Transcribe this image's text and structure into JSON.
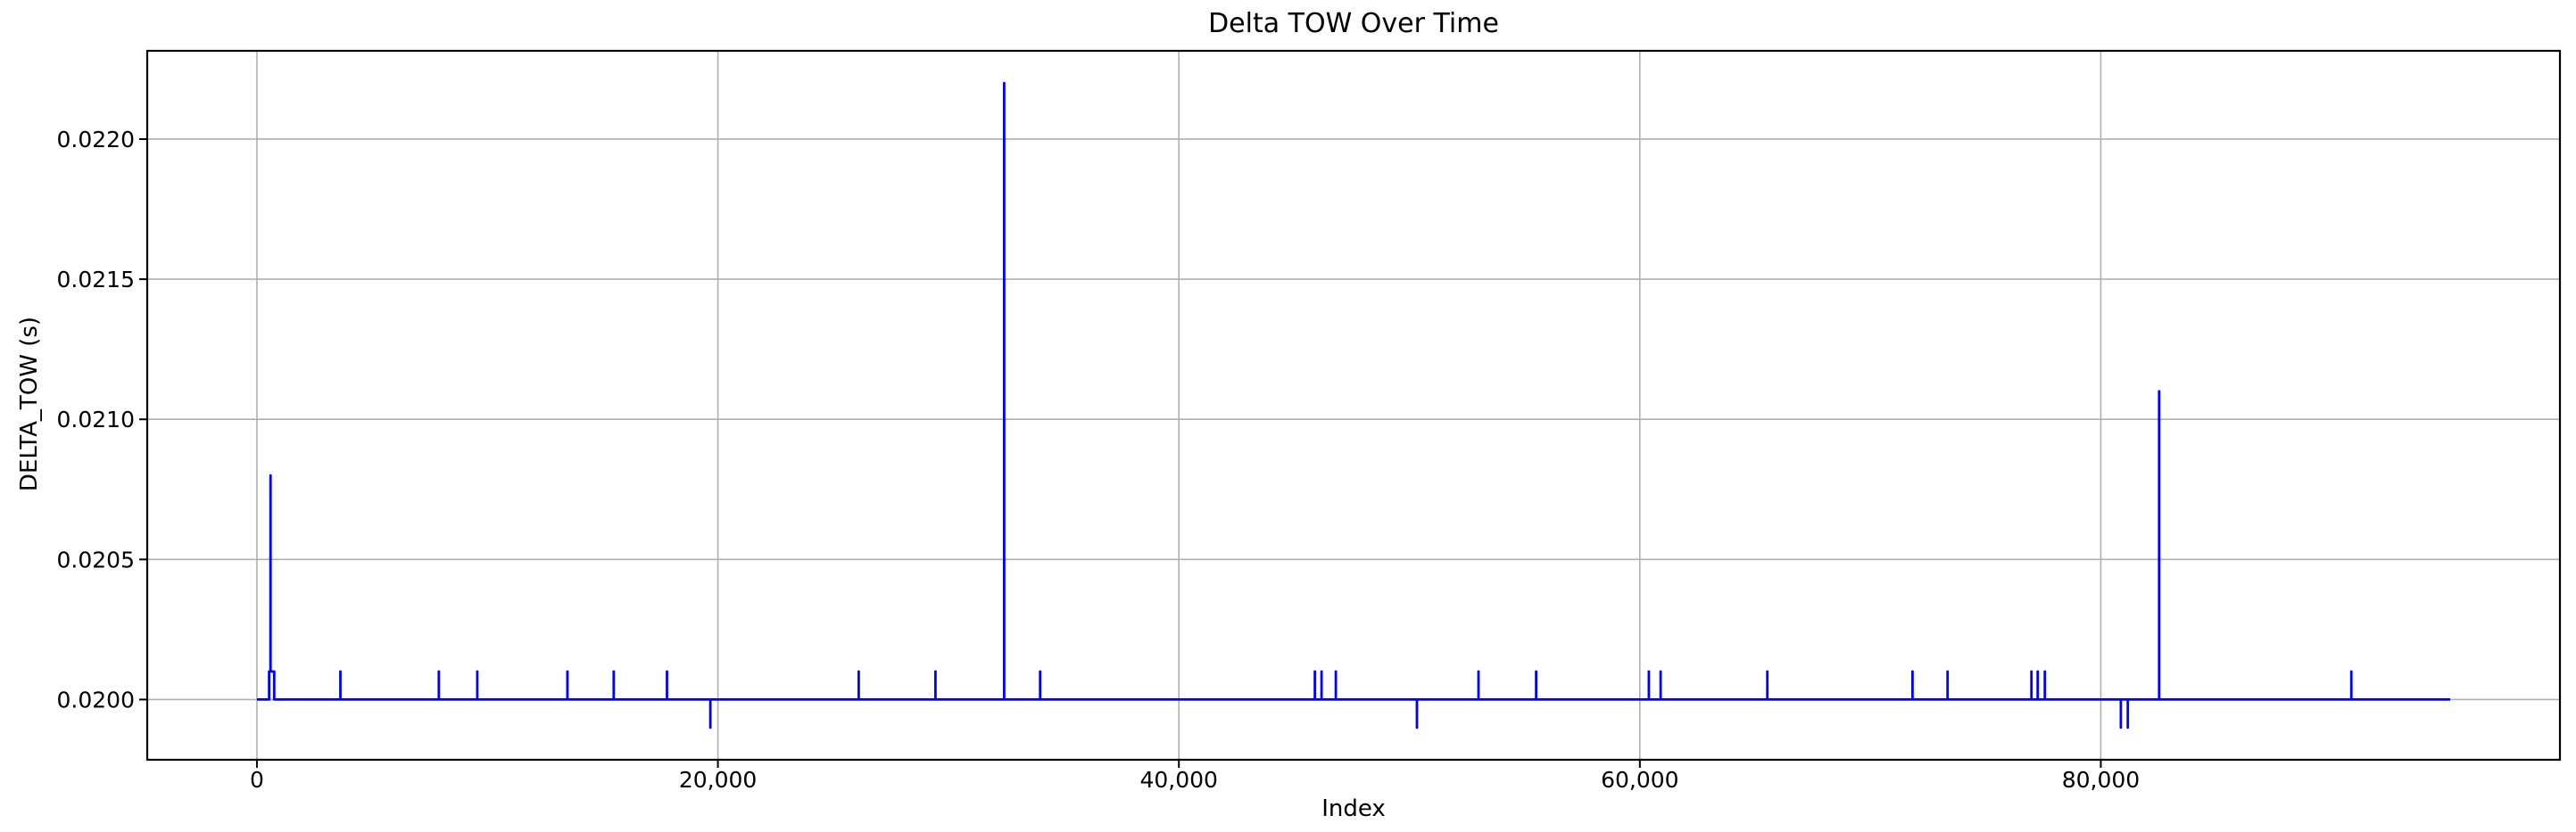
{
  "chart_data": {
    "type": "line",
    "title": "Delta TOW Over Time",
    "xlabel": "Index",
    "ylabel": "DELTA_TOW (s)",
    "grid": true,
    "grid_color": "#b0b0b0",
    "axis_color": "#000000",
    "xlim": [
      -4760,
      99920
    ],
    "ylim": [
      0.019785,
      0.022315
    ],
    "x_ticks": [
      {
        "value": 0,
        "label": "0"
      },
      {
        "value": 20000,
        "label": "20,000"
      },
      {
        "value": 40000,
        "label": "40,000"
      },
      {
        "value": 60000,
        "label": "60,000"
      },
      {
        "value": 80000,
        "label": "80,000"
      }
    ],
    "y_ticks": [
      {
        "value": 0.02,
        "label": "0.0200"
      },
      {
        "value": 0.0205,
        "label": "0.0205"
      },
      {
        "value": 0.021,
        "label": "0.0210"
      },
      {
        "value": 0.0215,
        "label": "0.0215"
      },
      {
        "value": 0.022,
        "label": "0.0220"
      }
    ],
    "baseline_value": 0.02,
    "index_range": [
      0,
      95160
    ],
    "annotations_summary": {
      "major_spikes": [
        {
          "index": 590,
          "value": 0.0208
        },
        {
          "index": 32420,
          "value": 0.0222
        },
        {
          "index": 82530,
          "value": 0.0211
        }
      ],
      "minor_spike_value": 0.0201,
      "minor_spike_indices": [
        3620,
        7890,
        9560,
        13470,
        15480,
        17790,
        26110,
        29440,
        33980,
        45900,
        46190,
        46810,
        53000,
        55500,
        60390,
        60900,
        65530,
        71830,
        73350,
        76990,
        77260,
        77570,
        90870
      ],
      "plateau": {
        "from": 530,
        "to": 750,
        "value": 0.0201
      },
      "dip_value": 0.0199,
      "dip_indices": [
        19670,
        50330,
        80870,
        81170
      ]
    },
    "series": [
      {
        "name": "DELTA_TOW",
        "color": "#0000ff",
        "points": [
          [
            0,
            0.02
          ],
          [
            530,
            0.02
          ],
          [
            530,
            0.0201
          ],
          [
            588,
            0.0201
          ],
          [
            590,
            0.0208
          ],
          [
            592,
            0.0201
          ],
          [
            750,
            0.0201
          ],
          [
            750,
            0.02
          ],
          [
            3620,
            0.02
          ],
          [
            3620,
            0.0201
          ],
          [
            3620,
            0.02
          ],
          [
            7890,
            0.02
          ],
          [
            7890,
            0.0201
          ],
          [
            7890,
            0.02
          ],
          [
            9560,
            0.02
          ],
          [
            9560,
            0.0201
          ],
          [
            9560,
            0.02
          ],
          [
            13470,
            0.02
          ],
          [
            13470,
            0.0201
          ],
          [
            13470,
            0.02
          ],
          [
            15480,
            0.02
          ],
          [
            15480,
            0.0201
          ],
          [
            15480,
            0.02
          ],
          [
            17790,
            0.02
          ],
          [
            17790,
            0.0201
          ],
          [
            17790,
            0.02
          ],
          [
            19670,
            0.02
          ],
          [
            19670,
            0.0199
          ],
          [
            19670,
            0.02
          ],
          [
            26110,
            0.02
          ],
          [
            26110,
            0.0201
          ],
          [
            26110,
            0.02
          ],
          [
            29440,
            0.02
          ],
          [
            29440,
            0.0201
          ],
          [
            29440,
            0.02
          ],
          [
            32420,
            0.02
          ],
          [
            32420,
            0.0222
          ],
          [
            32420,
            0.02
          ],
          [
            33980,
            0.02
          ],
          [
            33980,
            0.0201
          ],
          [
            33980,
            0.02
          ],
          [
            45900,
            0.02
          ],
          [
            45900,
            0.0201
          ],
          [
            45900,
            0.02
          ],
          [
            46190,
            0.02
          ],
          [
            46190,
            0.0201
          ],
          [
            46190,
            0.02
          ],
          [
            46810,
            0.02
          ],
          [
            46810,
            0.0201
          ],
          [
            46810,
            0.02
          ],
          [
            50330,
            0.02
          ],
          [
            50330,
            0.0199
          ],
          [
            50330,
            0.02
          ],
          [
            53000,
            0.02
          ],
          [
            53000,
            0.0201
          ],
          [
            53000,
            0.02
          ],
          [
            55500,
            0.02
          ],
          [
            55500,
            0.0201
          ],
          [
            55500,
            0.02
          ],
          [
            60390,
            0.02
          ],
          [
            60390,
            0.0201
          ],
          [
            60390,
            0.02
          ],
          [
            60900,
            0.02
          ],
          [
            60900,
            0.0201
          ],
          [
            60900,
            0.02
          ],
          [
            65530,
            0.02
          ],
          [
            65530,
            0.0201
          ],
          [
            65530,
            0.02
          ],
          [
            71830,
            0.02
          ],
          [
            71830,
            0.0201
          ],
          [
            71830,
            0.02
          ],
          [
            73350,
            0.02
          ],
          [
            73350,
            0.0201
          ],
          [
            73350,
            0.02
          ],
          [
            76990,
            0.02
          ],
          [
            76990,
            0.0201
          ],
          [
            76990,
            0.02
          ],
          [
            77260,
            0.02
          ],
          [
            77260,
            0.0201
          ],
          [
            77260,
            0.02
          ],
          [
            77570,
            0.02
          ],
          [
            77570,
            0.0201
          ],
          [
            77570,
            0.02
          ],
          [
            80870,
            0.02
          ],
          [
            80870,
            0.0199
          ],
          [
            80870,
            0.02
          ],
          [
            81170,
            0.02
          ],
          [
            81170,
            0.0199
          ],
          [
            81170,
            0.02
          ],
          [
            82530,
            0.02
          ],
          [
            82530,
            0.0211
          ],
          [
            82530,
            0.02
          ],
          [
            90870,
            0.02
          ],
          [
            90870,
            0.0201
          ],
          [
            90870,
            0.02
          ],
          [
            95160,
            0.02
          ]
        ]
      }
    ]
  }
}
